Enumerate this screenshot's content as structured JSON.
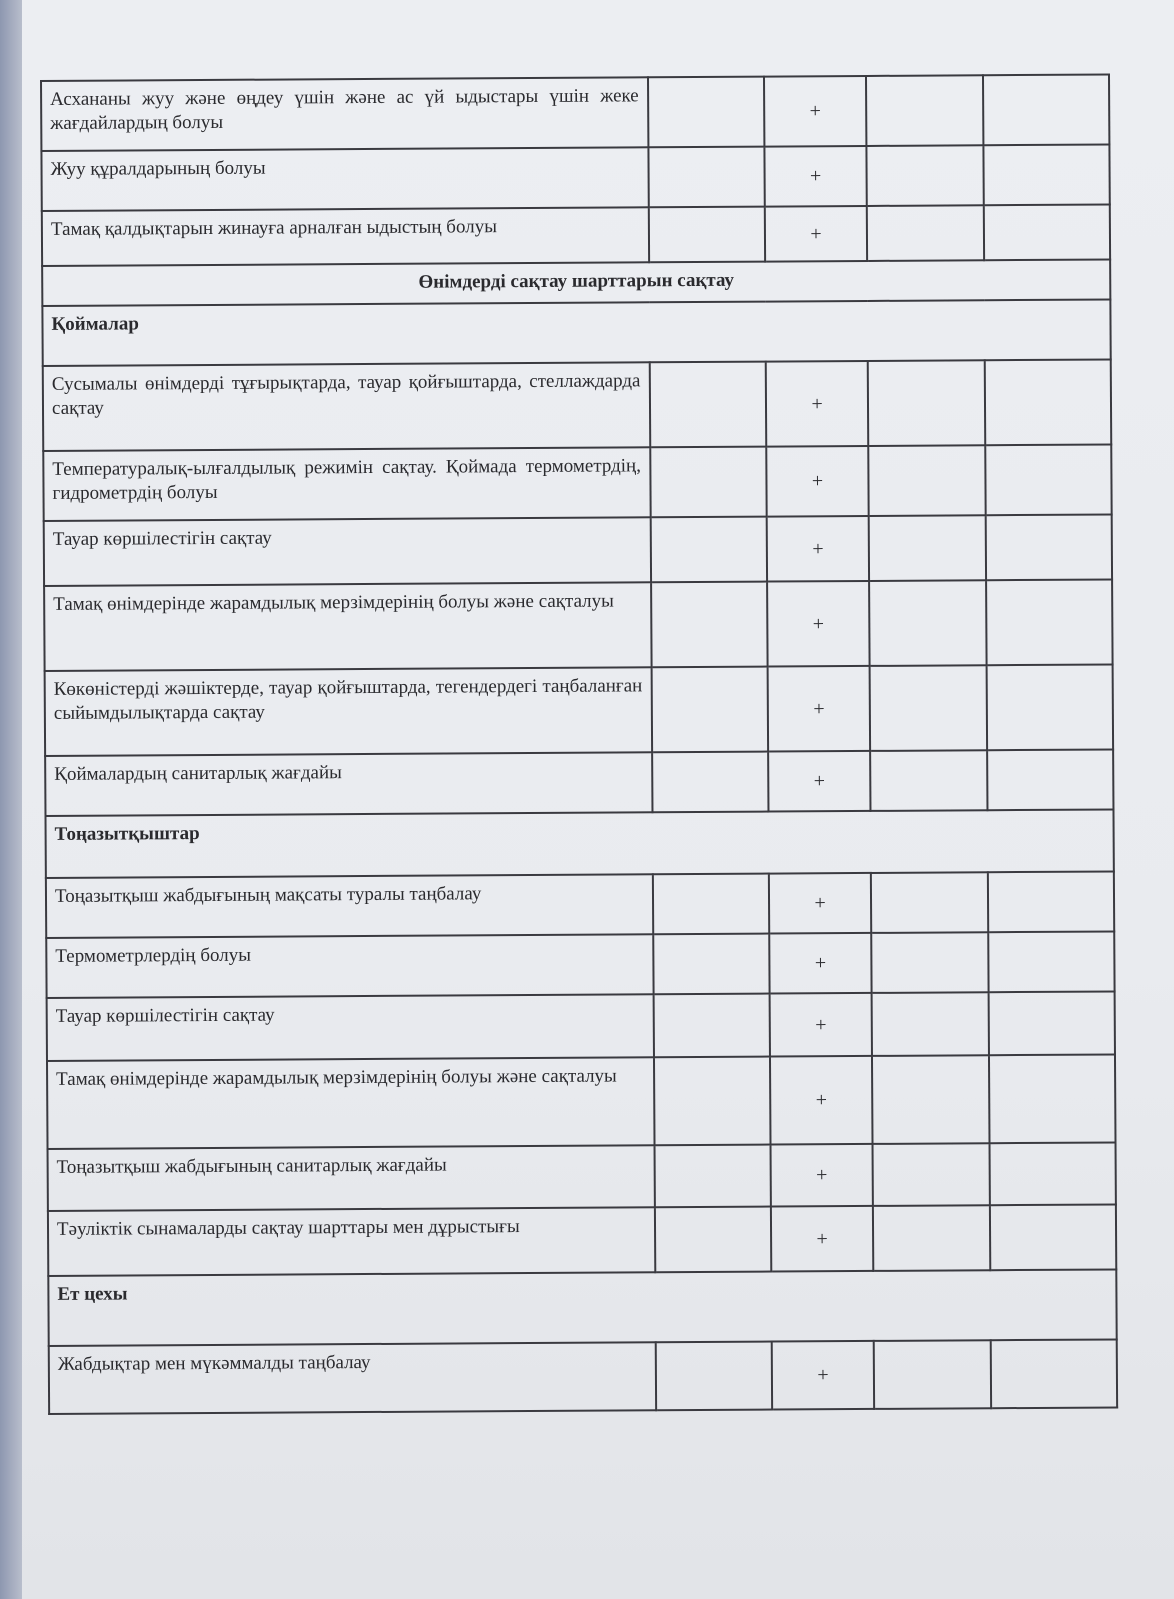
{
  "document": {
    "rows": [
      {
        "kind": "item",
        "text": "Асхананы жуу және өңдеу үшін және ас үй ыдыстары үшін жеке жағдайлардың болуы",
        "mark": "+",
        "h": 70
      },
      {
        "kind": "item",
        "text": "Жуу құралдарының болуы",
        "mark": "+",
        "h": 60
      },
      {
        "kind": "item",
        "text": "Тамақ қалдықтарын жинауға арналған ыдыстың болуы",
        "mark": "+",
        "h": 55
      },
      {
        "kind": "heading",
        "text": "Өнімдерді сақтау шарттарын сақтау",
        "h": 40
      },
      {
        "kind": "section",
        "text": "Қоймалар",
        "h": 60
      },
      {
        "kind": "item",
        "text": "Сусымалы өнімдерді тұғырықтарда, тауар қойғыштарда, стеллаждарда сақтау",
        "mark": "+",
        "h": 85
      },
      {
        "kind": "item",
        "text": "Температуралық-ылғалдылық режимін сақтау. Қоймада термометрдің, гидрометрдің болуы",
        "mark": "+",
        "h": 70
      },
      {
        "kind": "item",
        "text": "Тауар көршілестігін сақтау",
        "mark": "+",
        "h": 65
      },
      {
        "kind": "item",
        "text": "Тамақ өнімдерінде жарамдылық мерзімдерінің болуы және сақталуы",
        "mark": "+",
        "h": 85
      },
      {
        "kind": "item",
        "text": "Көкөністерді жәшіктерде, тауар қойғыштарда, тегендердегі таңбаланған сыйымдылықтарда сақтау",
        "mark": "+",
        "h": 85
      },
      {
        "kind": "item",
        "text": "Қоймалардың санитарлық жағдайы",
        "mark": "+",
        "h": 60
      },
      {
        "kind": "section",
        "text": "Тоңазытқыштар",
        "h": 62
      },
      {
        "kind": "item",
        "text": "Тоңазытқыш жабдығының мақсаты туралы таңбалау",
        "mark": "+",
        "h": 60
      },
      {
        "kind": "item",
        "text": "Термометрлердің болуы",
        "mark": "+",
        "h": 60
      },
      {
        "kind": "item",
        "text": "Тауар көршілестігін сақтау",
        "mark": "+",
        "h": 63
      },
      {
        "kind": "item",
        "text": "Тамақ өнімдерінде жарамдылық мерзімдерінің болуы және сақталуы",
        "mark": "+",
        "h": 88
      },
      {
        "kind": "item",
        "text": "Тоңазытқыш жабдығының санитарлық жағдайы",
        "mark": "+",
        "h": 62
      },
      {
        "kind": "item",
        "text": "Тәуліктік сынамаларды сақтау шарттары мен дұрыстығы",
        "mark": "+",
        "h": 65
      },
      {
        "kind": "section",
        "text": "Ет цехы",
        "h": 70
      },
      {
        "kind": "item",
        "text": "Жабдықтар мен мүкәммалды таңбалау",
        "mark": "+",
        "h": 68
      }
    ]
  }
}
